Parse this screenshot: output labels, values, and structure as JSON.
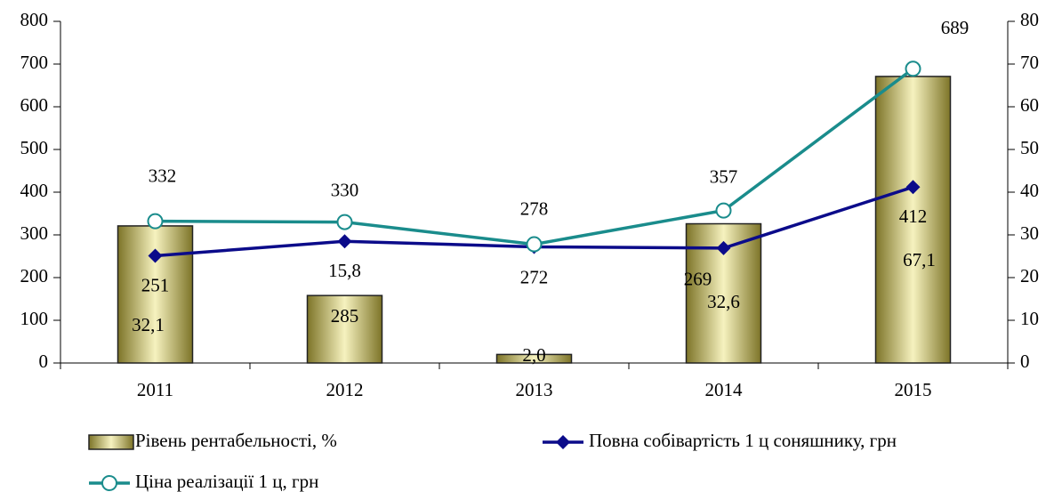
{
  "chart_data": {
    "type": "bar",
    "categories": [
      "2011",
      "2012",
      "2013",
      "2014",
      "2015"
    ],
    "series": [
      {
        "name": "Рівень рентабельності, %",
        "type": "bar",
        "axis": "y2",
        "color": "#d4cc7a",
        "values": [
          32.1,
          15.8,
          2.0,
          32.6,
          67.1
        ],
        "value_labels": [
          "32,1",
          "15,8",
          "2,0",
          "32,6",
          "67,1"
        ]
      },
      {
        "name": "Повна собівартість 1 ц соняшнику, грн",
        "type": "line",
        "color": "#0b0b8a",
        "marker": "diamond",
        "values": [
          251,
          285,
          272,
          269,
          412
        ]
      },
      {
        "name": "Ціна реалізації 1 ц, грн",
        "type": "line",
        "color": "#1a8c8c",
        "marker": "circle",
        "values": [
          332,
          330,
          278,
          357,
          689
        ]
      }
    ],
    "ylim": [
      0,
      800
    ],
    "yticks": [
      0,
      100,
      200,
      300,
      400,
      500,
      600,
      700,
      800
    ],
    "y2lim": [
      0,
      80
    ],
    "y2ticks": [
      0,
      10,
      20,
      30,
      40,
      50,
      60,
      70,
      80
    ],
    "grid": false,
    "legend": "bottom"
  }
}
